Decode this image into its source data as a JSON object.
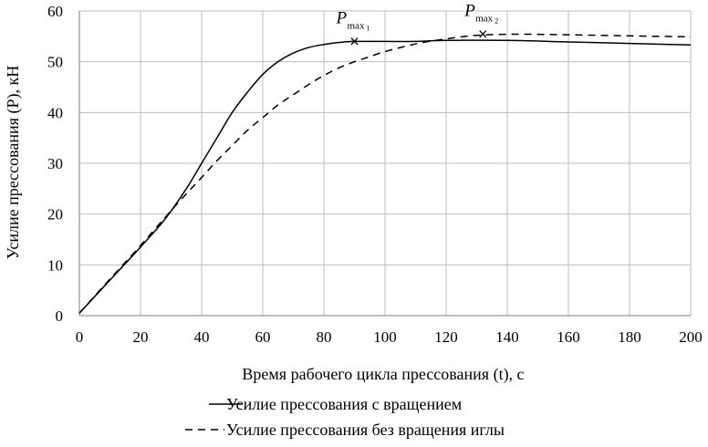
{
  "chart_data": {
    "type": "line",
    "xlabel": "Время рабочего цикла прессования  (t), с",
    "ylabel": "Усилие прессования (Р), кН",
    "xlim": [
      0,
      200
    ],
    "ylim": [
      0,
      60
    ],
    "x_ticks": [
      "0",
      "20",
      "40",
      "60",
      "80",
      "100",
      "120",
      "140",
      "160",
      "180",
      "200"
    ],
    "y_ticks": [
      "0",
      "10",
      "20",
      "30",
      "40",
      "50",
      "60"
    ],
    "grid": true,
    "legend_position": "bottom",
    "series": [
      {
        "name": "Усилие прессования с вращением",
        "style": "solid",
        "color": "#000000",
        "x": [
          0,
          10,
          20,
          28,
          35,
          40,
          45,
          50,
          55,
          60,
          65,
          70,
          75,
          80,
          85,
          90,
          100,
          110,
          120,
          140,
          160,
          180,
          200
        ],
        "y": [
          0.5,
          7,
          13.5,
          19,
          25,
          30,
          35,
          40,
          44,
          47.5,
          50,
          51.7,
          52.8,
          53.4,
          53.8,
          54,
          54,
          54,
          54.2,
          54.2,
          53.9,
          53.6,
          53.3
        ]
      },
      {
        "name": "Усилие прессования без вращения иглы",
        "style": "dashed",
        "color": "#000000",
        "x": [
          0,
          10,
          20,
          28,
          35,
          40,
          45,
          50,
          55,
          60,
          65,
          70,
          75,
          80,
          85,
          90,
          95,
          100,
          110,
          120,
          130,
          140,
          150,
          160,
          180,
          200
        ],
        "y": [
          0.5,
          7.2,
          13.8,
          19.3,
          24,
          27.2,
          30.5,
          33.5,
          36.5,
          39,
          41.5,
          43.5,
          45.5,
          47.3,
          48.8,
          50,
          51,
          52,
          53.5,
          54.5,
          55.2,
          55.4,
          55.4,
          55.3,
          55.1,
          54.9
        ]
      }
    ],
    "annotations": [
      {
        "main": "P",
        "sub": "max",
        "subsub": "1",
        "x": 90,
        "y": 54,
        "marker": "×"
      },
      {
        "main": "P",
        "sub": "max",
        "subsub": "2",
        "x": 132,
        "y": 55.4,
        "marker": "×"
      }
    ]
  }
}
